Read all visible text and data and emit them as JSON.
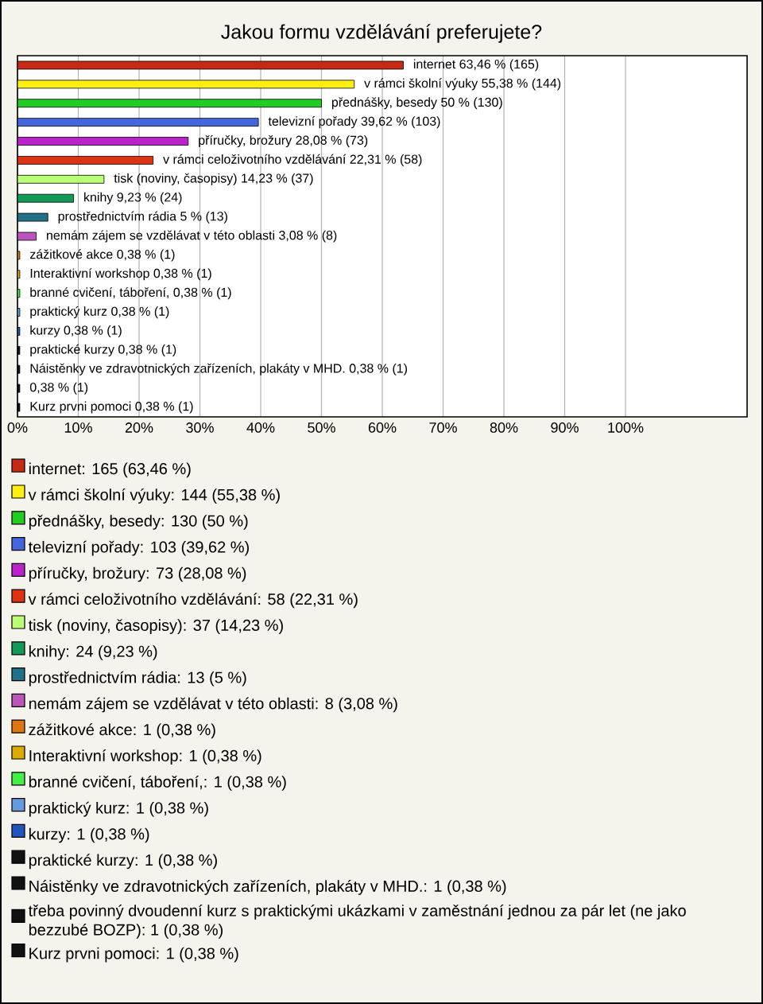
{
  "chart_data": {
    "type": "bar",
    "orientation": "horizontal",
    "title": "Jakou formu vzdělávání preferujete?",
    "categories": [
      null,
      null,
      null,
      null,
      null,
      null,
      null,
      null,
      null,
      null,
      null,
      null,
      null,
      null,
      null,
      null,
      null,
      null,
      null
    ],
    "series": [
      {
        "name": "internet: 165 (63,46 %)",
        "color": "#c42a14",
        "values": [
          63.46,
          null,
          null,
          null,
          null,
          null,
          null,
          null,
          null,
          null,
          null,
          null,
          null,
          null,
          null,
          null,
          null,
          null,
          null
        ],
        "value_labels": [
          "internet 63,46 % (165)",
          null,
          null,
          null,
          null,
          null,
          null,
          null,
          null,
          null,
          null,
          null,
          null,
          null,
          null,
          null,
          null,
          null,
          null
        ]
      },
      {
        "name": "v rámci školní výuky: 144 (55,38 %)",
        "color": "#ffee11",
        "values": [
          null,
          55.38,
          null,
          null,
          null,
          null,
          null,
          null,
          null,
          null,
          null,
          null,
          null,
          null,
          null,
          null,
          null,
          null,
          null
        ],
        "value_labels": [
          null,
          "v rámci školní výuky 55,38 % (144)",
          null,
          null,
          null,
          null,
          null,
          null,
          null,
          null,
          null,
          null,
          null,
          null,
          null,
          null,
          null,
          null,
          null
        ]
      },
      {
        "name": "přednášky, besedy: 130 (50 %)",
        "color": "#22cc22",
        "values": [
          null,
          null,
          50,
          null,
          null,
          null,
          null,
          null,
          null,
          null,
          null,
          null,
          null,
          null,
          null,
          null,
          null,
          null,
          null
        ],
        "value_labels": [
          null,
          null,
          "přednášky, besedy 50 % (130)",
          null,
          null,
          null,
          null,
          null,
          null,
          null,
          null,
          null,
          null,
          null,
          null,
          null,
          null,
          null,
          null
        ]
      },
      {
        "name": "televizní pořady: 103 (39,62 %)",
        "color": "#4466dd",
        "values": [
          null,
          null,
          null,
          39.62,
          null,
          null,
          null,
          null,
          null,
          null,
          null,
          null,
          null,
          null,
          null,
          null,
          null,
          null,
          null
        ],
        "value_labels": [
          null,
          null,
          null,
          "televizní pořady 39,62 % (103)",
          null,
          null,
          null,
          null,
          null,
          null,
          null,
          null,
          null,
          null,
          null,
          null,
          null,
          null,
          null
        ]
      },
      {
        "name": "příručky, brožury: 73 (28,08 %)",
        "color": "#bb22cc",
        "values": [
          null,
          null,
          null,
          null,
          28.08,
          null,
          null,
          null,
          null,
          null,
          null,
          null,
          null,
          null,
          null,
          null,
          null,
          null,
          null
        ],
        "value_labels": [
          null,
          null,
          null,
          null,
          "příručky, brožury 28,08 % (73)",
          null,
          null,
          null,
          null,
          null,
          null,
          null,
          null,
          null,
          null,
          null,
          null,
          null,
          null
        ]
      },
      {
        "name": "v rámci celoživotního vzdělávání: 58 (22,31 %)",
        "color": "#dd3311",
        "values": [
          null,
          null,
          null,
          null,
          null,
          22.31,
          null,
          null,
          null,
          null,
          null,
          null,
          null,
          null,
          null,
          null,
          null,
          null,
          null
        ],
        "value_labels": [
          null,
          null,
          null,
          null,
          null,
          "v rámci celoživotního vzdělávání 22,31 % (58)",
          null,
          null,
          null,
          null,
          null,
          null,
          null,
          null,
          null,
          null,
          null,
          null,
          null
        ]
      },
      {
        "name": "tisk (noviny, časopisy): 37 (14,23 %)",
        "color": "#bbff77",
        "values": [
          null,
          null,
          null,
          null,
          null,
          null,
          14.23,
          null,
          null,
          null,
          null,
          null,
          null,
          null,
          null,
          null,
          null,
          null,
          null
        ],
        "value_labels": [
          null,
          null,
          null,
          null,
          null,
          null,
          "tisk (noviny, časopisy) 14,23 % (37)",
          null,
          null,
          null,
          null,
          null,
          null,
          null,
          null,
          null,
          null,
          null,
          null
        ]
      },
      {
        "name": "knihy: 24 (9,23 %)",
        "color": "#119955",
        "values": [
          null,
          null,
          null,
          null,
          null,
          null,
          null,
          9.23,
          null,
          null,
          null,
          null,
          null,
          null,
          null,
          null,
          null,
          null,
          null
        ],
        "value_labels": [
          null,
          null,
          null,
          null,
          null,
          null,
          null,
          "knihy 9,23 % (24)",
          null,
          null,
          null,
          null,
          null,
          null,
          null,
          null,
          null,
          null,
          null
        ]
      },
      {
        "name": "prostřednictvím rádia: 13 (5 %)",
        "color": "#226f88",
        "values": [
          null,
          null,
          null,
          null,
          null,
          null,
          null,
          null,
          5,
          null,
          null,
          null,
          null,
          null,
          null,
          null,
          null,
          null,
          null
        ],
        "value_labels": [
          null,
          null,
          null,
          null,
          null,
          null,
          null,
          null,
          "prostřednictvím rádia 5 % (13)",
          null,
          null,
          null,
          null,
          null,
          null,
          null,
          null,
          null,
          null
        ]
      },
      {
        "name": "nemám zájem se vzdělávat v této oblasti: 8 (3,08 %)",
        "color": "#bb55bb",
        "values": [
          null,
          null,
          null,
          null,
          null,
          null,
          null,
          null,
          null,
          3.08,
          null,
          null,
          null,
          null,
          null,
          null,
          null,
          null,
          null
        ],
        "value_labels": [
          null,
          null,
          null,
          null,
          null,
          null,
          null,
          null,
          null,
          "nemám zájem se vzdělávat v této oblasti 3,08 % (8)",
          null,
          null,
          null,
          null,
          null,
          null,
          null,
          null,
          null
        ]
      },
      {
        "name": "zážitkové akce: 1 (0,38 %)",
        "color": "#dd7711",
        "values": [
          null,
          null,
          null,
          null,
          null,
          null,
          null,
          null,
          null,
          null,
          0.38,
          null,
          null,
          null,
          null,
          null,
          null,
          null,
          null
        ],
        "value_labels": [
          null,
          null,
          null,
          null,
          null,
          null,
          null,
          null,
          null,
          null,
          "zážitkové akce 0,38 % (1)",
          null,
          null,
          null,
          null,
          null,
          null,
          null,
          null
        ]
      },
      {
        "name": "Interaktivní workshop: 1 (0,38 %)",
        "color": "#ddaa00",
        "values": [
          null,
          null,
          null,
          null,
          null,
          null,
          null,
          null,
          null,
          null,
          null,
          0.38,
          null,
          null,
          null,
          null,
          null,
          null,
          null
        ],
        "value_labels": [
          null,
          null,
          null,
          null,
          null,
          null,
          null,
          null,
          null,
          null,
          null,
          "Interaktivní workshop 0,38 % (1)",
          null,
          null,
          null,
          null,
          null,
          null,
          null
        ]
      },
      {
        "name": "branné cvičení, táboření,: 1 (0,38 %)",
        "color": "#44ee44",
        "values": [
          null,
          null,
          null,
          null,
          null,
          null,
          null,
          null,
          null,
          null,
          null,
          null,
          0.38,
          null,
          null,
          null,
          null,
          null,
          null
        ],
        "value_labels": [
          null,
          null,
          null,
          null,
          null,
          null,
          null,
          null,
          null,
          null,
          null,
          null,
          "branné cvičení, táboření, 0,38 % (1)",
          null,
          null,
          null,
          null,
          null,
          null
        ]
      },
      {
        "name": "praktický kurz: 1 (0,38 %)",
        "color": "#6699dd",
        "values": [
          null,
          null,
          null,
          null,
          null,
          null,
          null,
          null,
          null,
          null,
          null,
          null,
          null,
          0.38,
          null,
          null,
          null,
          null,
          null
        ],
        "value_labels": [
          null,
          null,
          null,
          null,
          null,
          null,
          null,
          null,
          null,
          null,
          null,
          null,
          null,
          "praktický kurz 0,38 % (1)",
          null,
          null,
          null,
          null,
          null
        ]
      },
      {
        "name": "kurzy: 1 (0,38 %)",
        "color": "#2255bb",
        "values": [
          null,
          null,
          null,
          null,
          null,
          null,
          null,
          null,
          null,
          null,
          null,
          null,
          null,
          null,
          0.38,
          null,
          null,
          null,
          null
        ],
        "value_labels": [
          null,
          null,
          null,
          null,
          null,
          null,
          null,
          null,
          null,
          null,
          null,
          null,
          null,
          null,
          "kurzy 0,38 % (1)",
          null,
          null,
          null,
          null
        ]
      },
      {
        "name": "praktické kurzy: 1 (0,38 %)",
        "color": "#111111",
        "values": [
          null,
          null,
          null,
          null,
          null,
          null,
          null,
          null,
          null,
          null,
          null,
          null,
          null,
          null,
          null,
          0.38,
          null,
          null,
          null
        ],
        "value_labels": [
          null,
          null,
          null,
          null,
          null,
          null,
          null,
          null,
          null,
          null,
          null,
          null,
          null,
          null,
          null,
          "praktické kurzy 0,38 % (1)",
          null,
          null,
          null
        ]
      },
      {
        "name": "Náistěnky ve zdravotnických zařízeních, plakáty v MHD.: 1 (0,38 %)",
        "color": "#111111",
        "values": [
          null,
          null,
          null,
          null,
          null,
          null,
          null,
          null,
          null,
          null,
          null,
          null,
          null,
          null,
          null,
          null,
          0.38,
          null,
          null
        ],
        "value_labels": [
          null,
          null,
          null,
          null,
          null,
          null,
          null,
          null,
          null,
          null,
          null,
          null,
          null,
          null,
          null,
          null,
          "Náistěnky ve zdravotnických zařízeních, plakáty v MHD. 0,38 % (1)",
          null,
          null
        ]
      },
      {
        "name": "třeba povinný dvoudenní kurz s praktickými ukázkami v zaměstnání jednou za pár let (ne jako bezzubé BOZP): 1 (0,38 %)",
        "color": "#111111",
        "values": [
          null,
          null,
          null,
          null,
          null,
          null,
          null,
          null,
          null,
          null,
          null,
          null,
          null,
          null,
          null,
          null,
          null,
          0.38,
          null
        ],
        "value_labels": [
          null,
          null,
          null,
          null,
          null,
          null,
          null,
          null,
          null,
          null,
          null,
          null,
          null,
          null,
          null,
          null,
          null,
          "0,38 % (1)",
          null
        ]
      },
      {
        "name": "Kurz prvni pomoci: 1 (0,38 %)",
        "color": "#111111",
        "values": [
          null,
          null,
          null,
          null,
          null,
          null,
          null,
          null,
          null,
          null,
          null,
          null,
          null,
          null,
          null,
          null,
          null,
          null,
          0.38
        ],
        "value_labels": [
          null,
          null,
          null,
          null,
          null,
          null,
          null,
          null,
          null,
          null,
          null,
          null,
          null,
          null,
          null,
          null,
          null,
          null,
          "Kurz prvni pomoci 0,38 % (1)"
        ]
      }
    ],
    "xlim": [
      0,
      120
    ],
    "xticks": [
      {
        "value": 0,
        "label": "0%"
      },
      {
        "value": 10,
        "label": "10%"
      },
      {
        "value": 20,
        "label": "20%"
      },
      {
        "value": 30,
        "label": "30%"
      },
      {
        "value": 40,
        "label": "40%"
      },
      {
        "value": 50,
        "label": "50%"
      },
      {
        "value": 60,
        "label": "60%"
      },
      {
        "value": 70,
        "label": "70%"
      },
      {
        "value": 80,
        "label": "80%"
      },
      {
        "value": 90,
        "label": "90%"
      },
      {
        "value": 100,
        "label": "100%"
      }
    ],
    "grid": "x",
    "legend": "bottom"
  }
}
